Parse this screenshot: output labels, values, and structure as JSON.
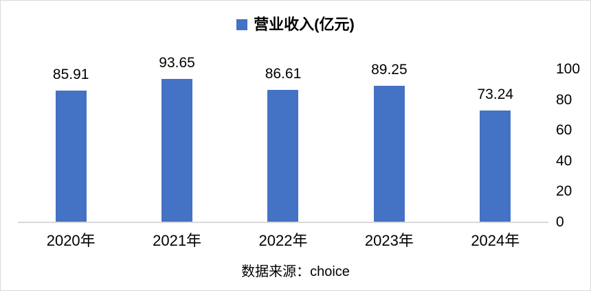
{
  "chart_data": {
    "type": "bar",
    "title": "",
    "legend_entries": [
      "营业收入(亿元)"
    ],
    "legend_position": "top-center",
    "categories": [
      "2020年",
      "2021年",
      "2022年",
      "2023年",
      "2024年"
    ],
    "series": [
      {
        "name": "营业收入(亿元)",
        "values": [
          85.91,
          93.65,
          86.61,
          89.25,
          73.24
        ]
      }
    ],
    "value_labels": [
      "85.91",
      "93.65",
      "86.61",
      "89.25",
      "73.24"
    ],
    "xlabel": "",
    "ylabel": "",
    "ylim": [
      0,
      100
    ],
    "yticks": [
      0,
      20,
      40,
      60,
      80,
      100
    ],
    "y_axis_side": "right",
    "grid": false,
    "bar_color": "#4472c4",
    "axis_line_color": "#d9d9d9"
  },
  "source_text": "数据来源：choice"
}
